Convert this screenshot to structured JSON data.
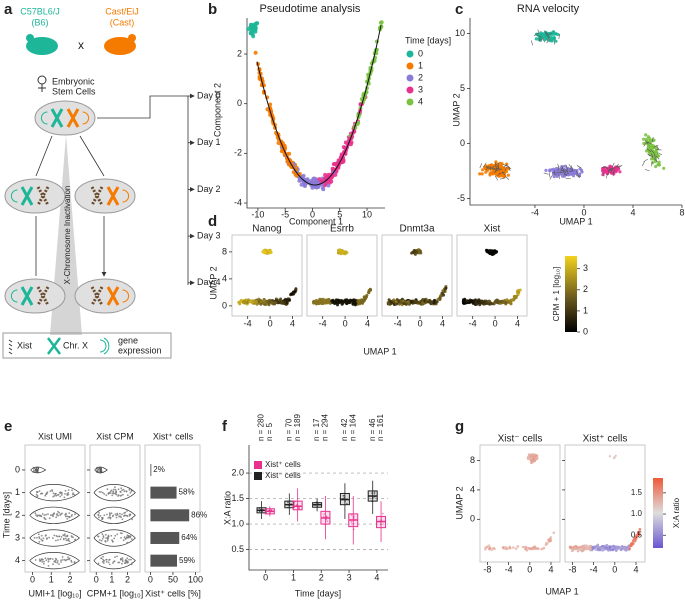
{
  "panel_a": {
    "label": "a",
    "strain1": "C57BL6/J",
    "strain1_short": "(B6)",
    "cross": "x",
    "strain2": "Cast/EiJ",
    "strain2_short": "(Cast)",
    "cells_line1": "Embryonic",
    "cells_line2": "Stem Cells",
    "days": [
      "Day 0",
      "Day 1",
      "Day 2",
      "Day 3",
      "Day 4"
    ],
    "process": "X-Chromosome Inactivation",
    "legend": {
      "xist": "Xist",
      "chrx": "Chr. X",
      "gene1": "gene",
      "gene2": "expression"
    }
  },
  "panel_b": {
    "label": "b",
    "title": "Pseudotime analysis",
    "xlabel": "Component 1",
    "ylabel": "Component 2",
    "xlim": [
      -12,
      13.3
    ],
    "ylim": [
      -4.2,
      3.45
    ],
    "xticks": [
      -10,
      -5,
      0,
      5,
      10
    ],
    "yticks": [
      -4,
      -2,
      0,
      2
    ],
    "legend_title": "Time [days]",
    "groups": [
      {
        "name": "0",
        "color": "#1db699"
      },
      {
        "name": "1",
        "color": "#f57a00"
      },
      {
        "name": "2",
        "color": "#8b7bd8"
      },
      {
        "name": "3",
        "color": "#e8318d"
      },
      {
        "name": "4",
        "color": "#7cc242"
      }
    ]
  },
  "panel_c": {
    "label": "c",
    "title": "RNA velocity",
    "xlabel": "UMAP 1",
    "ylabel": "UMAP 2",
    "xlim": [
      -9.3,
      8
    ],
    "ylim": [
      -5.6,
      11.4
    ],
    "xticks": [
      -4,
      0,
      4,
      8
    ],
    "yticks": [
      -5,
      0,
      5,
      10
    ]
  },
  "panel_d": {
    "label": "d",
    "genes": [
      "Nanog",
      "Esrrb",
      "Dnmt3a",
      "Xist"
    ],
    "xlabel": "UMAP 1",
    "ylabel": "UMAP 2",
    "xlim": [
      -6.8,
      5.7
    ],
    "ylim": [
      -1.5,
      10.5
    ],
    "xticks": [
      -4,
      0,
      4
    ],
    "yticks": [
      0,
      4,
      8
    ],
    "colorbar_label": "CPM + 1 [log₁₀]",
    "colorbar_lim": [
      0,
      3.6
    ],
    "colorbar_ticks": [
      0,
      1,
      2,
      3
    ]
  },
  "panel_e": {
    "label": "e",
    "titles": [
      "Xist UMI",
      "Xist CPM"
    ],
    "bar_title": "Xist⁺ cells",
    "ylabel": "Time [days]",
    "ylim": [
      -1.1,
      4.5
    ],
    "yticks": [
      0,
      1,
      2,
      3,
      4
    ],
    "violin_xlim": [
      -0.4,
      2.8
    ],
    "violin_xticks": [
      0,
      1,
      2
    ],
    "xlabels": [
      "UMI+1 [log₁₀]",
      "CPM+1 [log₁₀]"
    ],
    "bar_xlim": [
      -12,
      110
    ],
    "bar_xticks": [
      0,
      50,
      100
    ],
    "bar_xlabel": "Xist⁺ cells [%]",
    "bar_values": [
      2,
      58,
      86,
      64,
      59
    ],
    "bar_value_labels": [
      "2%",
      "58%",
      "86%",
      "64%",
      "59%"
    ],
    "bar_color": "#555555"
  },
  "panel_f": {
    "label": "f",
    "xlabel": "Time [days]",
    "ylabel": "X:A ratio",
    "xlim": [
      -0.6,
      4.4
    ],
    "xticks": [
      0,
      1,
      2,
      3,
      4
    ],
    "ylim": [
      0.1,
      2.55
    ],
    "yticks": [
      {
        "value": 0.5,
        "label": "0.5"
      },
      {
        "value": 1,
        "label": "1.0"
      },
      {
        "value": 1.5,
        "label": "1.5"
      },
      {
        "value": 2,
        "label": "2.0"
      }
    ],
    "n_labels": [
      "n = 280",
      "n = 5",
      "n = 70",
      "n = 189",
      "n = 17",
      "n = 294",
      "n = 42",
      "n = 164",
      "n = 46",
      "n = 161"
    ],
    "series": [
      {
        "name": "Xist⁻ cells",
        "color": "#222222",
        "low": [
          1.1,
          1.18,
          1.25,
          1.1,
          1.2
        ],
        "q1": [
          1.22,
          1.32,
          1.33,
          1.38,
          1.45
        ],
        "median": [
          1.27,
          1.38,
          1.38,
          1.48,
          1.55
        ],
        "q3": [
          1.32,
          1.45,
          1.42,
          1.6,
          1.65
        ],
        "high": [
          1.45,
          1.6,
          1.5,
          1.8,
          1.85
        ]
      },
      {
        "name": "Xist⁺ cells",
        "color": "#e8318d",
        "low": [
          1.15,
          1.05,
          0.7,
          0.6,
          0.65
        ],
        "q1": [
          1.2,
          1.28,
          1.0,
          0.95,
          0.93
        ],
        "median": [
          1.25,
          1.35,
          1.12,
          1.08,
          1.05
        ],
        "q3": [
          1.3,
          1.45,
          1.25,
          1.2,
          1.15
        ],
        "high": [
          1.35,
          1.7,
          1.55,
          1.55,
          1.45
        ]
      }
    ]
  },
  "panel_g": {
    "label": "g",
    "titles": [
      "Xist⁻ cells",
      "Xist⁺ cells"
    ],
    "xlabel": "UMAP 1",
    "ylabel": "UMAP 2",
    "xlim": [
      -9.4,
      5.7
    ],
    "ylim": [
      -5.8,
      10.1
    ],
    "xticks": [
      -8,
      -4,
      0,
      4
    ],
    "yticks": [
      0,
      4,
      8
    ],
    "colorbar_label": "X:A ratio",
    "colorbar_lim": [
      0.2,
      1.85
    ],
    "colorbar_ticks": [
      {
        "value": 0.5,
        "label": "0.5"
      },
      {
        "value": 1,
        "label": "1.0"
      },
      {
        "value": 1.5,
        "label": "1.5"
      }
    ]
  }
}
